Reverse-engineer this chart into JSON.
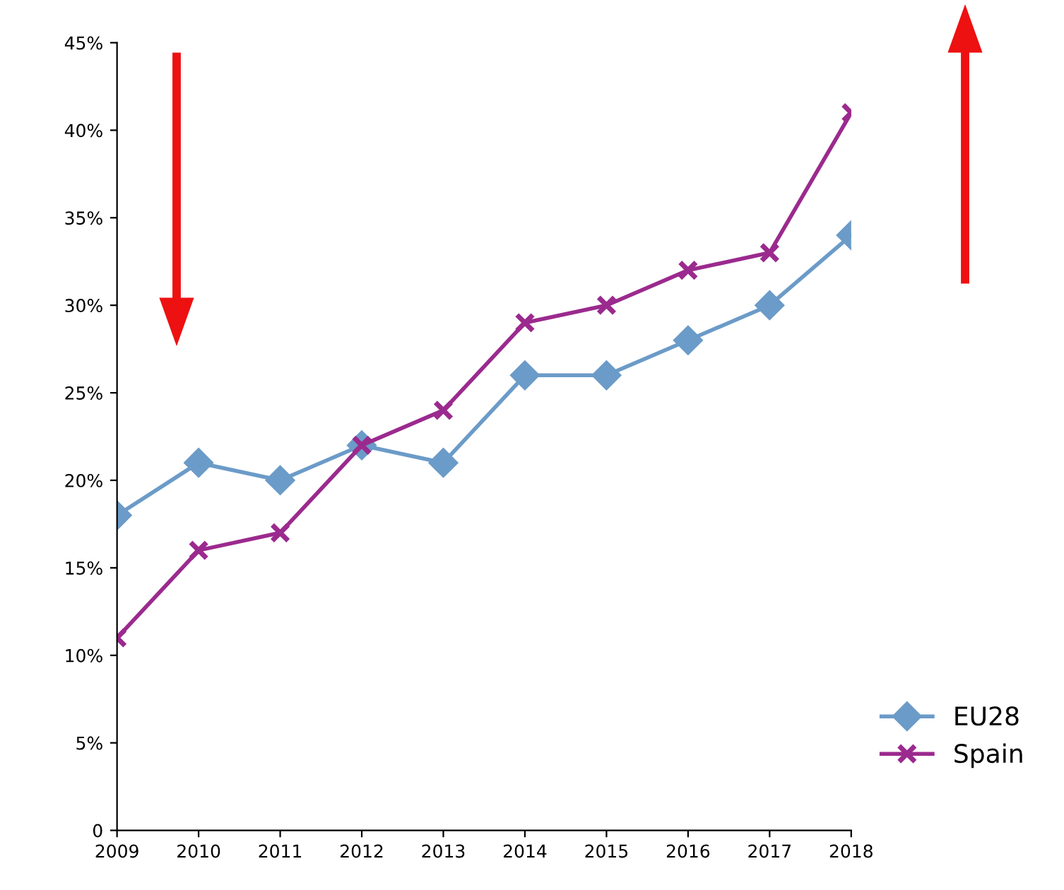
{
  "chart_data": {
    "type": "line",
    "categories": [
      "2009",
      "2010",
      "2011",
      "2012",
      "2013",
      "2014",
      "2015",
      "2016",
      "2017",
      "2018"
    ],
    "series": [
      {
        "name": "EU28",
        "color": "#6b9bc8",
        "marker": "diamond",
        "values": [
          18,
          21,
          20,
          22,
          21,
          26,
          26,
          28,
          30,
          34
        ]
      },
      {
        "name": "Spain",
        "color": "#9b2a8e",
        "marker": "cross",
        "values": [
          11,
          16,
          17,
          22,
          24,
          29,
          30,
          32,
          33,
          41
        ]
      }
    ],
    "ylim": [
      0,
      45
    ],
    "yticks": [
      0,
      {
        "value": 5,
        "label": "5%"
      },
      {
        "value": 10,
        "label": "10%"
      },
      {
        "value": 15,
        "label": "15%"
      },
      {
        "value": 20,
        "label": "20%"
      },
      {
        "value": 25,
        "label": "25%"
      },
      {
        "value": 30,
        "label": "30%"
      },
      {
        "value": 35,
        "label": "35%"
      },
      {
        "value": 40,
        "label": "40%"
      },
      {
        "value": 45,
        "label": "45%"
      }
    ],
    "grid": false,
    "legend": "bottom right"
  }
}
